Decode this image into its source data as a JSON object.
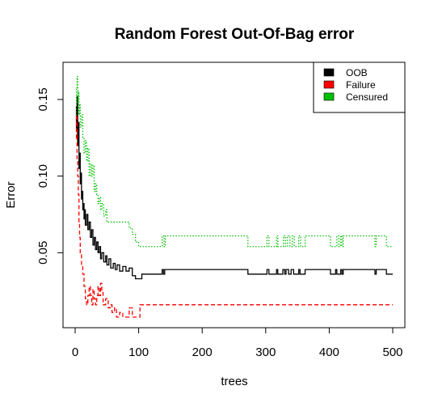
{
  "chart_data": {
    "type": "line",
    "title": "Random Forest Out-Of-Bag error",
    "xlabel": "trees",
    "ylabel": "Error",
    "xlim": [
      0,
      500
    ],
    "ylim": [
      0,
      0.16
    ],
    "x_ticks": [
      0,
      100,
      200,
      300,
      400,
      500
    ],
    "x_tick_labels": [
      "0",
      "100",
      "200",
      "300",
      "400",
      "500"
    ],
    "y_ticks": [
      0.05,
      0.1,
      0.15
    ],
    "y_tick_labels": [
      "0.05",
      "0.10",
      "0.15"
    ],
    "grid": false,
    "legend_position": "top-right",
    "series": [
      {
        "name": "OOB",
        "color": "#000000",
        "dash": "solid",
        "points": [
          [
            1,
            0.145
          ],
          [
            2,
            0.13
          ],
          [
            3,
            0.152
          ],
          [
            4,
            0.12
          ],
          [
            5,
            0.135
          ],
          [
            6,
            0.105
          ],
          [
            7,
            0.115
          ],
          [
            8,
            0.095
          ],
          [
            9,
            0.102
          ],
          [
            10,
            0.085
          ],
          [
            11,
            0.09
          ],
          [
            12,
            0.078
          ],
          [
            13,
            0.082
          ],
          [
            14,
            0.072
          ],
          [
            15,
            0.078
          ],
          [
            16,
            0.068
          ],
          [
            18,
            0.075
          ],
          [
            20,
            0.065
          ],
          [
            22,
            0.07
          ],
          [
            24,
            0.06
          ],
          [
            26,
            0.065
          ],
          [
            28,
            0.055
          ],
          [
            30,
            0.06
          ],
          [
            32,
            0.052
          ],
          [
            34,
            0.057
          ],
          [
            36,
            0.05
          ],
          [
            38,
            0.054
          ],
          [
            40,
            0.046
          ],
          [
            42,
            0.05
          ],
          [
            45,
            0.044
          ],
          [
            48,
            0.048
          ],
          [
            50,
            0.042
          ],
          [
            53,
            0.046
          ],
          [
            56,
            0.04
          ],
          [
            60,
            0.043
          ],
          [
            63,
            0.039
          ],
          [
            66,
            0.042
          ],
          [
            70,
            0.038
          ],
          [
            75,
            0.041
          ],
          [
            80,
            0.038
          ],
          [
            85,
            0.04
          ],
          [
            90,
            0.035
          ],
          [
            95,
            0.033
          ],
          [
            100,
            0.033
          ],
          [
            105,
            0.036
          ],
          [
            135,
            0.036
          ],
          [
            137,
            0.039
          ],
          [
            139,
            0.036
          ],
          [
            141,
            0.039
          ],
          [
            270,
            0.039
          ],
          [
            272,
            0.036
          ],
          [
            300,
            0.036
          ],
          [
            302,
            0.039
          ],
          [
            305,
            0.036
          ],
          [
            315,
            0.036
          ],
          [
            317,
            0.039
          ],
          [
            319,
            0.036
          ],
          [
            325,
            0.036
          ],
          [
            327,
            0.039
          ],
          [
            330,
            0.036
          ],
          [
            332,
            0.039
          ],
          [
            336,
            0.036
          ],
          [
            340,
            0.039
          ],
          [
            344,
            0.036
          ],
          [
            350,
            0.036
          ],
          [
            352,
            0.039
          ],
          [
            354,
            0.036
          ],
          [
            360,
            0.036
          ],
          [
            362,
            0.039
          ],
          [
            400,
            0.039
          ],
          [
            402,
            0.036
          ],
          [
            408,
            0.036
          ],
          [
            410,
            0.039
          ],
          [
            412,
            0.036
          ],
          [
            418,
            0.039
          ],
          [
            420,
            0.036
          ],
          [
            422,
            0.039
          ],
          [
            470,
            0.039
          ],
          [
            472,
            0.036
          ],
          [
            474,
            0.039
          ],
          [
            488,
            0.039
          ],
          [
            490,
            0.036
          ],
          [
            500,
            0.036
          ]
        ]
      },
      {
        "name": "Failure",
        "color": "#ff0000",
        "dash": "dashed",
        "points": [
          [
            1,
            0.125
          ],
          [
            2,
            0.14
          ],
          [
            3,
            0.11
          ],
          [
            4,
            0.1
          ],
          [
            5,
            0.088
          ],
          [
            6,
            0.07
          ],
          [
            7,
            0.06
          ],
          [
            8,
            0.05
          ],
          [
            10,
            0.042
          ],
          [
            12,
            0.036
          ],
          [
            14,
            0.028
          ],
          [
            16,
            0.02
          ],
          [
            18,
            0.016
          ],
          [
            20,
            0.022
          ],
          [
            22,
            0.028
          ],
          [
            24,
            0.022
          ],
          [
            26,
            0.016
          ],
          [
            28,
            0.026
          ],
          [
            30,
            0.02
          ],
          [
            32,
            0.016
          ],
          [
            34,
            0.022
          ],
          [
            36,
            0.028
          ],
          [
            38,
            0.022
          ],
          [
            40,
            0.03
          ],
          [
            42,
            0.024
          ],
          [
            44,
            0.016
          ],
          [
            48,
            0.02
          ],
          [
            52,
            0.014
          ],
          [
            55,
            0.016
          ],
          [
            58,
            0.011
          ],
          [
            62,
            0.014
          ],
          [
            65,
            0.008
          ],
          [
            70,
            0.011
          ],
          [
            75,
            0.008
          ],
          [
            80,
            0.008
          ],
          [
            85,
            0.014
          ],
          [
            90,
            0.008
          ],
          [
            95,
            0.008
          ],
          [
            100,
            0.008
          ],
          [
            102,
            0.016
          ],
          [
            500,
            0.016
          ]
        ]
      },
      {
        "name": "Censured",
        "color": "#00c000",
        "dash": "dotted",
        "points": [
          [
            1,
            0.14
          ],
          [
            2,
            0.158
          ],
          [
            3,
            0.165
          ],
          [
            4,
            0.148
          ],
          [
            5,
            0.155
          ],
          [
            6,
            0.14
          ],
          [
            7,
            0.147
          ],
          [
            8,
            0.132
          ],
          [
            10,
            0.14
          ],
          [
            12,
            0.125
          ],
          [
            14,
            0.115
          ],
          [
            16,
            0.123
          ],
          [
            18,
            0.11
          ],
          [
            20,
            0.118
          ],
          [
            22,
            0.1
          ],
          [
            24,
            0.108
          ],
          [
            26,
            0.1
          ],
          [
            28,
            0.107
          ],
          [
            30,
            0.09
          ],
          [
            32,
            0.095
          ],
          [
            34,
            0.088
          ],
          [
            36,
            0.082
          ],
          [
            38,
            0.086
          ],
          [
            40,
            0.078
          ],
          [
            42,
            0.082
          ],
          [
            45,
            0.074
          ],
          [
            48,
            0.078
          ],
          [
            50,
            0.07
          ],
          [
            55,
            0.07
          ],
          [
            60,
            0.07
          ],
          [
            70,
            0.07
          ],
          [
            80,
            0.07
          ],
          [
            85,
            0.066
          ],
          [
            90,
            0.062
          ],
          [
            95,
            0.057
          ],
          [
            100,
            0.054
          ],
          [
            135,
            0.054
          ],
          [
            137,
            0.061
          ],
          [
            140,
            0.054
          ],
          [
            142,
            0.061
          ],
          [
            270,
            0.061
          ],
          [
            272,
            0.054
          ],
          [
            300,
            0.054
          ],
          [
            302,
            0.061
          ],
          [
            305,
            0.054
          ],
          [
            315,
            0.054
          ],
          [
            317,
            0.061
          ],
          [
            319,
            0.054
          ],
          [
            325,
            0.054
          ],
          [
            328,
            0.061
          ],
          [
            331,
            0.054
          ],
          [
            334,
            0.061
          ],
          [
            338,
            0.054
          ],
          [
            342,
            0.061
          ],
          [
            345,
            0.054
          ],
          [
            350,
            0.054
          ],
          [
            352,
            0.061
          ],
          [
            355,
            0.054
          ],
          [
            360,
            0.054
          ],
          [
            362,
            0.061
          ],
          [
            400,
            0.061
          ],
          [
            402,
            0.054
          ],
          [
            410,
            0.054
          ],
          [
            412,
            0.061
          ],
          [
            415,
            0.054
          ],
          [
            418,
            0.061
          ],
          [
            420,
            0.054
          ],
          [
            422,
            0.061
          ],
          [
            470,
            0.061
          ],
          [
            472,
            0.054
          ],
          [
            474,
            0.061
          ],
          [
            488,
            0.061
          ],
          [
            490,
            0.054
          ],
          [
            500,
            0.054
          ]
        ]
      }
    ]
  }
}
